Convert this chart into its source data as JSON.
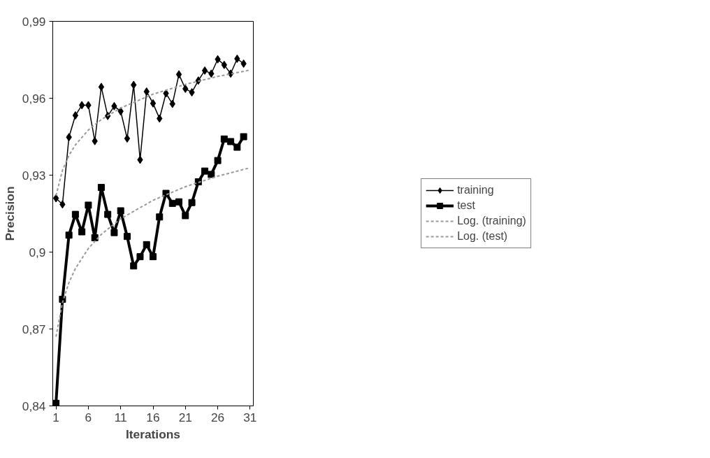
{
  "chart_data": {
    "type": "line",
    "xlabel": "Iterations",
    "ylabel": "Precision",
    "x": [
      1,
      2,
      3,
      4,
      5,
      6,
      7,
      8,
      9,
      10,
      11,
      12,
      13,
      14,
      15,
      16,
      17,
      18,
      19,
      20,
      21,
      22,
      23,
      24,
      25,
      26,
      27,
      28,
      29,
      30
    ],
    "series": [
      {
        "name": "training",
        "color": "#000000",
        "marker": "diamond",
        "line_style": "solid",
        "values": [
          0.921,
          0.9186,
          0.9448,
          0.9533,
          0.9573,
          0.9573,
          0.9433,
          0.9644,
          0.9531,
          0.9569,
          0.9549,
          0.9443,
          0.9652,
          0.936,
          0.9626,
          0.958,
          0.9521,
          0.9619,
          0.9578,
          0.9693,
          0.9637,
          0.9623,
          0.9669,
          0.9708,
          0.9696,
          0.9752,
          0.973,
          0.9696,
          0.9754,
          0.9735
        ]
      },
      {
        "name": "test",
        "color": "#000000",
        "marker": "square",
        "line_style": "solid",
        "values": [
          0.841,
          0.8816,
          0.9066,
          0.9147,
          0.9079,
          0.9183,
          0.9056,
          0.9252,
          0.9147,
          0.9076,
          0.9161,
          0.9061,
          0.8946,
          0.8982,
          0.9029,
          0.8982,
          0.9137,
          0.9229,
          0.919,
          0.9196,
          0.9142,
          0.9193,
          0.9274,
          0.9316,
          0.9303,
          0.9357,
          0.9441,
          0.9431,
          0.9409,
          0.945
        ]
      },
      {
        "name": "Log. (training)",
        "color": "#999999",
        "marker": "none",
        "line_style": "dashed",
        "x": [
          1,
          2,
          3,
          4,
          6,
          8,
          11,
          16,
          21,
          26,
          31
        ],
        "values": [
          0.922,
          0.9319,
          0.9377,
          0.9418,
          0.9476,
          0.9517,
          0.9562,
          0.9616,
          0.9654,
          0.9685,
          0.971
        ]
      },
      {
        "name": "Log. (test)",
        "color": "#999999",
        "marker": "none",
        "line_style": "dashed",
        "x": [
          1,
          2,
          3,
          4,
          6,
          8,
          11,
          16,
          21,
          26,
          31
        ],
        "values": [
          0.867,
          0.8803,
          0.8881,
          0.8936,
          0.9014,
          0.9069,
          0.913,
          0.9202,
          0.9255,
          0.9296,
          0.9329
        ]
      }
    ],
    "xlim": [
      0.5,
      31.5
    ],
    "xticks": [
      1,
      6,
      11,
      16,
      21,
      26,
      31
    ],
    "ylim": [
      0.84,
      0.99
    ],
    "yticks": [
      {
        "value": 0.84,
        "label": "0,84"
      },
      {
        "value": 0.87,
        "label": "0,87"
      },
      {
        "value": 0.9,
        "label": "0,9"
      },
      {
        "value": 0.93,
        "label": "0,93"
      },
      {
        "value": 0.96,
        "label": "0,96"
      },
      {
        "value": 0.99,
        "label": "0,99"
      }
    ],
    "grid": false,
    "legend": "right"
  }
}
